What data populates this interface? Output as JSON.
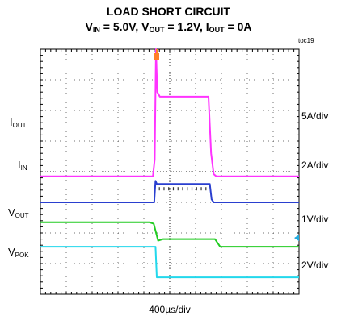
{
  "chart_data": {
    "type": "line",
    "title": "LOAD SHORT CIRCUIT",
    "subtitle": {
      "parts": [
        {
          "text": "V",
          "sub": "IN",
          "after": " = 5.0V, "
        },
        {
          "text": "V",
          "sub": "OUT",
          "after": " = 1.2V, "
        },
        {
          "text": "I",
          "sub": "OUT",
          "after": " = 0A"
        }
      ]
    },
    "figure_id": "toc19",
    "xlabel": "400µs/div",
    "x_unit": "div",
    "xlim": [
      0,
      10
    ],
    "ylim": [
      0,
      8
    ],
    "grid": true,
    "series": [
      {
        "name": "I",
        "name_sub": "OUT",
        "scale": "5A/div",
        "color": "#ff33ff",
        "ground_level_div": 3.85,
        "x": [
          0,
          4.35,
          4.42,
          4.47,
          4.52,
          4.62,
          4.8,
          6.5,
          6.6,
          6.7,
          6.8,
          10
        ],
        "y": [
          3.85,
          3.85,
          4.4,
          8.0,
          6.6,
          6.45,
          6.45,
          6.45,
          4.6,
          3.92,
          3.85,
          3.85
        ]
      },
      {
        "name": "I",
        "name_sub": "IN",
        "scale": "2A/div",
        "color": "#2a3fcf",
        "ground_level_div": 3.0,
        "x": [
          0,
          4.4,
          4.45,
          4.5,
          6.55,
          6.62,
          6.7,
          10
        ],
        "y": [
          3.0,
          3.0,
          3.7,
          3.6,
          3.6,
          3.1,
          3.0,
          3.0
        ]
      },
      {
        "name": "V",
        "name_sub": "OUT",
        "scale": "1V/div",
        "color": "#22cc22",
        "ground_level_div": 1.55,
        "x": [
          0,
          4.2,
          4.38,
          4.55,
          4.75,
          6.2,
          6.75,
          6.95,
          10
        ],
        "y": [
          2.35,
          2.35,
          2.3,
          1.75,
          1.8,
          1.8,
          1.8,
          1.55,
          1.55
        ]
      },
      {
        "name": "V",
        "name_sub": "POK",
        "scale": "2V/div",
        "color": "#22d8ec",
        "ground_level_div": 0.55,
        "x": [
          0,
          4.45,
          4.5,
          10
        ],
        "y": [
          1.55,
          1.55,
          0.55,
          0.55
        ]
      }
    ]
  },
  "colors": {
    "background": "#ffffff",
    "grid": "#000000",
    "trigger_marker": "#ff7f2a",
    "ground_marker": "#22aadd"
  }
}
